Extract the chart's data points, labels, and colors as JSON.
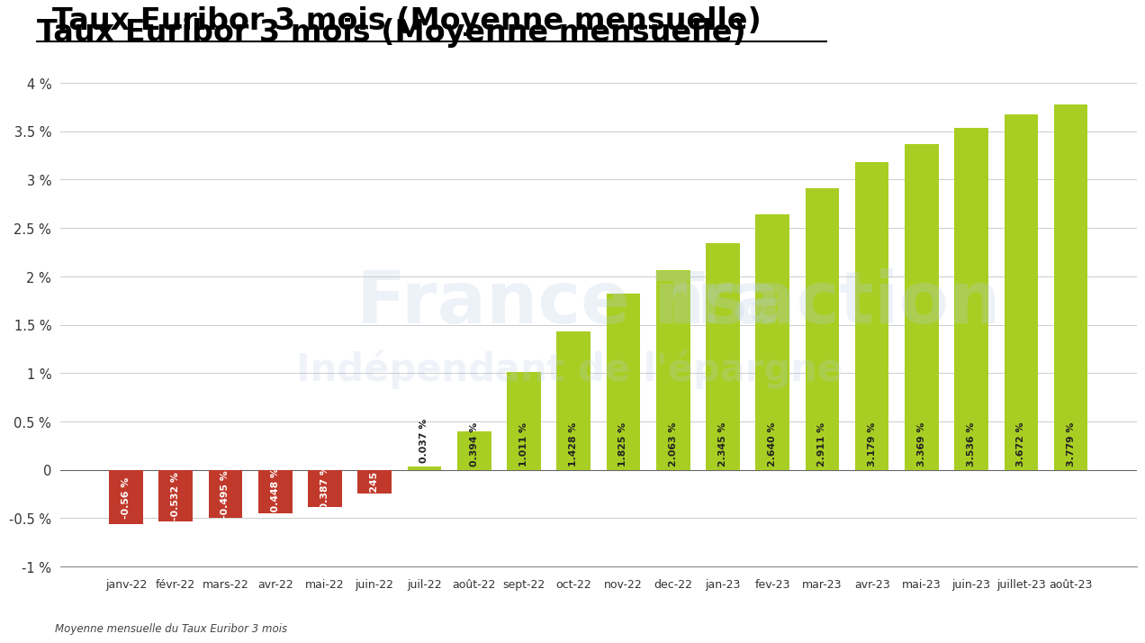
{
  "title": "Taux Euribor 3 mois (Moyenne mensuelle)",
  "subtitle": "Moyenne mensuelle du Taux Euribor 3 mois",
  "categories": [
    "janv-22",
    "févr-22",
    "mars-22",
    "avr-22",
    "mai-22",
    "juin-22",
    "juil-22",
    "août-22",
    "sept-22",
    "oct-22",
    "nov-22",
    "dec-22",
    "jan-23",
    "fev-23",
    "mar-23",
    "avr-23",
    "mai-23",
    "juin-23",
    "juillet-23",
    "août-23"
  ],
  "values": [
    -0.56,
    -0.532,
    -0.495,
    -0.448,
    -0.387,
    -0.245,
    0.037,
    0.394,
    1.011,
    1.428,
    1.825,
    2.063,
    2.345,
    2.64,
    2.911,
    3.179,
    3.369,
    3.536,
    3.672,
    3.779
  ],
  "labels": [
    "-0.56 %",
    "-0.532 %",
    "-0.495 %",
    "-0.448 %",
    "-0.387 %",
    "-0.245 %",
    "0.037 %",
    "0.394 %",
    "1.011 %",
    "1.428 %",
    "1.825 %",
    "2.063 %",
    "2.345 %",
    "2.640 %",
    "2.911 %",
    "3.179 %",
    "3.369 %",
    "3.536 %",
    "3.672 %",
    "3.779 %"
  ],
  "bar_color_negative": "#c0392b",
  "bar_color_positive": "#a8ce23",
  "ylim": [
    -1.0,
    4.0
  ],
  "yticks": [
    -1.0,
    -0.5,
    0.0,
    0.5,
    1.0,
    1.5,
    2.0,
    2.5,
    3.0,
    3.5,
    4.0
  ],
  "ytick_labels": [
    "-1 %",
    "-0.5 %",
    "0",
    "0.5 %",
    "1 %",
    "1.5 %",
    "2 %",
    "2.5 %",
    "3 %",
    "3.5 %",
    "4 %"
  ],
  "background_color": "#ffffff",
  "grid_color": "#cccccc",
  "title_fontsize": 24,
  "label_fontsize": 7.8
}
